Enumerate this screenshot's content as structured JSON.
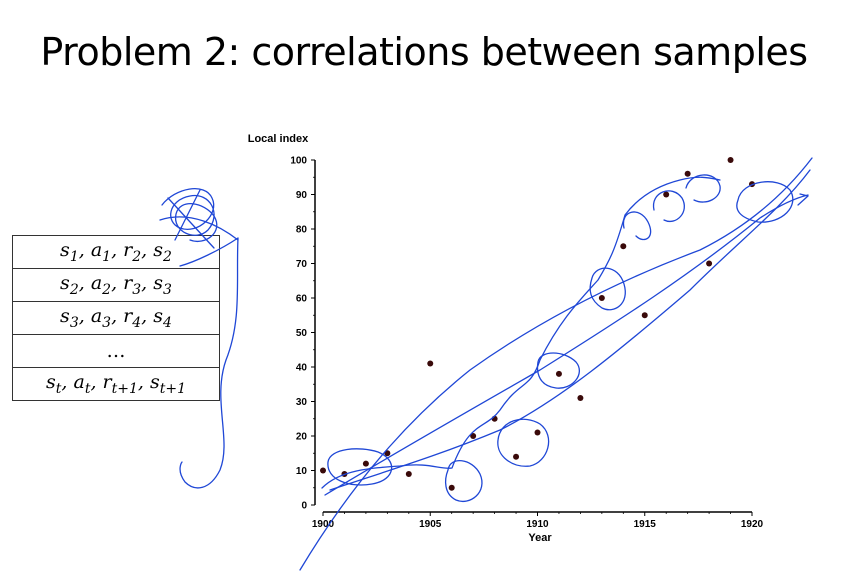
{
  "slide": {
    "title": "Problem 2: correlations between samples"
  },
  "table": {
    "rows": [
      "s1, a1, r2, s2",
      "s2, a2, r3, s3",
      "s3, a3, r4, s4",
      "...",
      "st, at, rt+1, st+1"
    ]
  },
  "chart_data": {
    "type": "scatter",
    "ylabel": "Local index",
    "xlabel": "Year",
    "xlim": [
      1900,
      1920
    ],
    "ylim": [
      0,
      100
    ],
    "xticks": [
      1900,
      1905,
      1910,
      1915,
      1920
    ],
    "yticks": [
      0,
      10,
      20,
      30,
      40,
      50,
      60,
      70,
      80,
      90,
      100
    ],
    "points": [
      {
        "x": 1900,
        "y": 10
      },
      {
        "x": 1901,
        "y": 9
      },
      {
        "x": 1902,
        "y": 12
      },
      {
        "x": 1903,
        "y": 15
      },
      {
        "x": 1904,
        "y": 9
      },
      {
        "x": 1905,
        "y": 41
      },
      {
        "x": 1906,
        "y": 5
      },
      {
        "x": 1907,
        "y": 20
      },
      {
        "x": 1908,
        "y": 25
      },
      {
        "x": 1909,
        "y": 14
      },
      {
        "x": 1910,
        "y": 21
      },
      {
        "x": 1911,
        "y": 38
      },
      {
        "x": 1912,
        "y": 31
      },
      {
        "x": 1913,
        "y": 60
      },
      {
        "x": 1914,
        "y": 75
      },
      {
        "x": 1915,
        "y": 55
      },
      {
        "x": 1916,
        "y": 90
      },
      {
        "x": 1917,
        "y": 96
      },
      {
        "x": 1918,
        "y": 70
      },
      {
        "x": 1919,
        "y": 100
      },
      {
        "x": 1920,
        "y": 93
      }
    ],
    "point_color": "#3a0a0a",
    "annotation_color": "#1f47d6",
    "grid": false,
    "legend": "none"
  }
}
